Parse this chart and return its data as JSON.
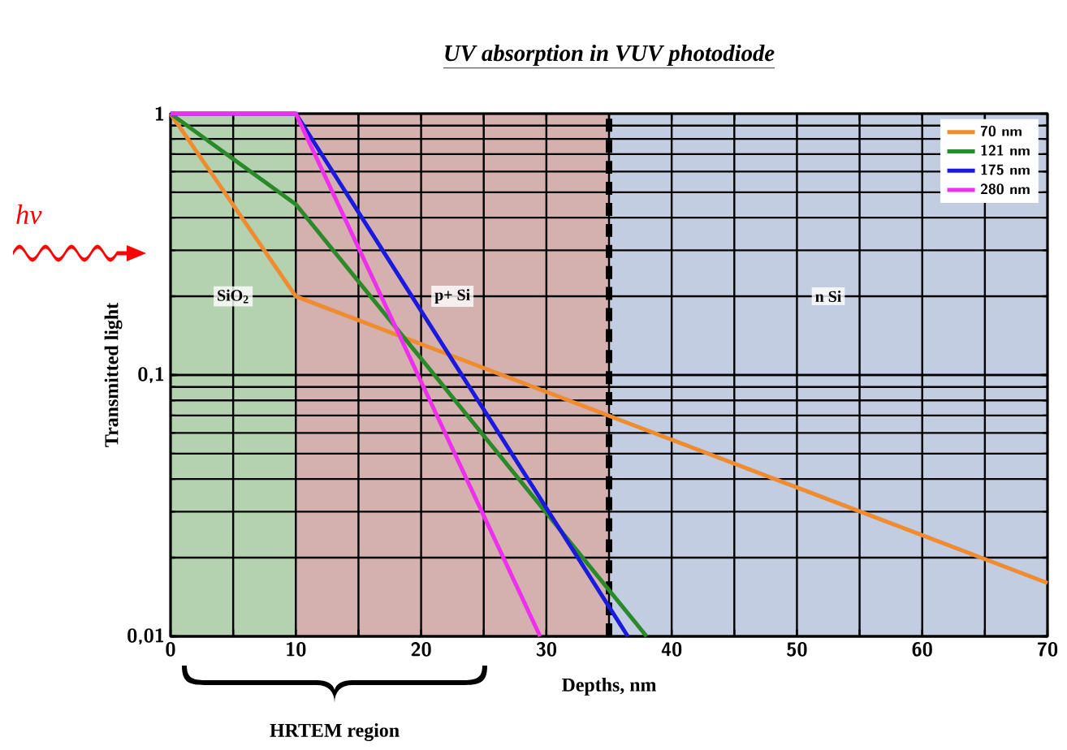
{
  "chart_data": {
    "type": "line",
    "title": "UV absorption in VUV photodiode",
    "xlabel": "Depths, nm",
    "ylabel": "Transmitted light",
    "series": [
      {
        "name": "70 nm",
        "color": "#f08c30",
        "x": [
          0,
          10,
          70
        ],
        "values": [
          1,
          0.2,
          0.016
        ]
      },
      {
        "name": "121 nm",
        "color": "#2a8a2a",
        "x": [
          0,
          10,
          38
        ],
        "values": [
          1,
          0.45,
          0.01
        ]
      },
      {
        "name": "175 nm",
        "color": "#1a1adc",
        "x": [
          0,
          10,
          36.5
        ],
        "values": [
          1,
          1,
          0.01
        ]
      },
      {
        "name": "280 nm",
        "color": "#ee30ee",
        "x": [
          0,
          10,
          29.5
        ],
        "values": [
          1,
          1,
          0.01
        ]
      }
    ],
    "xlim": [
      0,
      70
    ],
    "ylim": [
      0.01,
      1
    ],
    "log": "y",
    "xticks": [
      0,
      {
        "value": 5,
        "label": null
      },
      10,
      {
        "value": 15,
        "label": null
      },
      20,
      {
        "value": 25,
        "label": null
      },
      30,
      {
        "value": 35,
        "label": null
      },
      40,
      {
        "value": 45,
        "label": null
      },
      50,
      {
        "value": 55,
        "label": null
      },
      60,
      {
        "value": 65,
        "label": null
      },
      70
    ],
    "yticks": [
      {
        "value": 0.01,
        "label": "0,01"
      },
      {
        "value": 0.1,
        "label": "0,1"
      },
      1
    ],
    "bands": [
      {
        "axis": "x",
        "from": 0,
        "to": 10,
        "label": "SiO$_{2}$",
        "color": "#b4d2b0"
      },
      {
        "axis": "x",
        "from": 10,
        "to": 35,
        "label": "p+ Si",
        "color": "#d4b0ae"
      },
      {
        "axis": "x",
        "from": 35,
        "to": 70,
        "label": "n Si",
        "color": "#c2cde2"
      }
    ],
    "ref_lines": [
      {
        "axis": "x",
        "value": 35,
        "color": "#000000",
        "line_style": "dashed"
      }
    ],
    "annotations": [
      "hν",
      "HRTEM region"
    ],
    "grid": true,
    "legend": "top right",
    "line_style": "solid",
    "marker": "none"
  }
}
